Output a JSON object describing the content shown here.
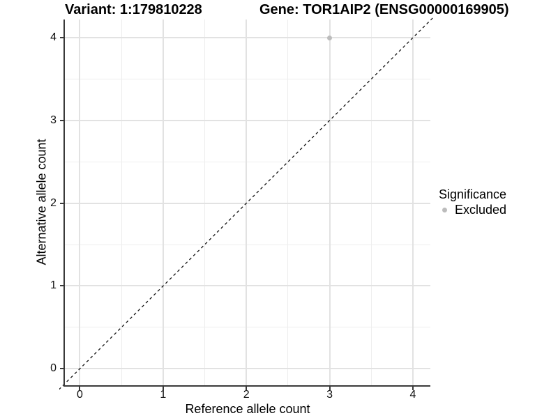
{
  "chart_data": {
    "type": "scatter",
    "titles": {
      "left": "Variant: 1:179810228",
      "right": "Gene: TOR1AIP2 (ENSG00000169905)"
    },
    "xlabel": "Reference allele count",
    "ylabel": "Alternative allele count",
    "xticks": [
      0,
      1,
      2,
      3,
      4
    ],
    "yticks": [
      0,
      1,
      2,
      3,
      4
    ],
    "minor_xticks": [
      0.5,
      1.5,
      2.5,
      3.5
    ],
    "minor_yticks": [
      0.5,
      1.5,
      2.5,
      3.5
    ],
    "xlim": [
      -0.18,
      4.21
    ],
    "ylim": [
      -0.2,
      4.22
    ],
    "grid": "major+minor",
    "points": [
      {
        "x": 3,
        "y": 4,
        "significance": "Excluded"
      }
    ],
    "reference_line": {
      "kind": "identity y=x",
      "style": "dashed",
      "color": "#111111"
    },
    "legend": {
      "position": "right",
      "title": "Significance",
      "entries": [
        {
          "label": "Excluded",
          "color": "#bcbcbc",
          "marker": "circle"
        }
      ]
    },
    "colors": {
      "point": "#bcbcbc",
      "grid_major": "#e2e2e2",
      "grid_minor": "#eeeeee",
      "axis_line": "#3a3a3a",
      "background": "#ffffff"
    }
  }
}
